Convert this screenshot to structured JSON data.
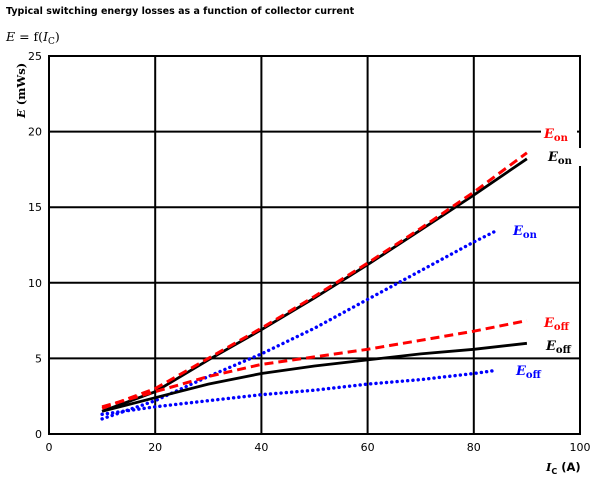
{
  "chart_data": {
    "type": "line",
    "title": "Typical switching energy losses as a function of collector current",
    "subtitle": {
      "italic_e": "E",
      "eq": " = f(",
      "italic_i": "I",
      "sub": "C",
      "close": ")"
    },
    "xlabel": {
      "main": "I",
      "sub": "C",
      "unit": " (A)"
    },
    "ylabel": {
      "main": "E",
      "unit": "  (mWs)"
    },
    "xlim": [
      0,
      100
    ],
    "ylim": [
      0,
      25
    ],
    "xticks": [
      "0",
      "20",
      "40",
      "60",
      "80",
      "100"
    ],
    "yticks": [
      "0",
      "5",
      "10",
      "15",
      "20",
      "25"
    ],
    "grid": true,
    "series": [
      {
        "label": "E",
        "sub": "on",
        "color": "#000000",
        "style": "solid",
        "x": [
          10,
          20,
          30,
          40,
          50,
          60,
          70,
          80,
          90
        ],
        "y": [
          1.5,
          2.8,
          4.9,
          6.9,
          9.0,
          11.2,
          13.5,
          15.8,
          18.2
        ]
      },
      {
        "label": "E",
        "sub": "on",
        "color": "#ff0000",
        "style": "dashed",
        "x": [
          10,
          20,
          30,
          40,
          50,
          60,
          70,
          80,
          90
        ],
        "y": [
          1.7,
          3.0,
          5.0,
          7.0,
          9.1,
          11.3,
          13.6,
          16.0,
          18.6
        ]
      },
      {
        "label": "E",
        "sub": "on",
        "color": "#0000ff",
        "style": "dotted",
        "x": [
          10,
          20,
          30,
          40,
          50,
          60,
          70,
          80,
          84
        ],
        "y": [
          1.0,
          2.2,
          3.8,
          5.3,
          7.0,
          8.9,
          10.8,
          12.7,
          13.4
        ]
      },
      {
        "label": "E",
        "sub": "off",
        "color": "#ff0000",
        "style": "dashed",
        "x": [
          10,
          20,
          30,
          40,
          50,
          60,
          70,
          80,
          90
        ],
        "y": [
          1.8,
          2.8,
          3.8,
          4.6,
          5.1,
          5.6,
          6.2,
          6.8,
          7.5
        ]
      },
      {
        "label": "E",
        "sub": "off",
        "color": "#000000",
        "style": "solid",
        "x": [
          10,
          20,
          30,
          40,
          50,
          60,
          70,
          80,
          90
        ],
        "y": [
          1.5,
          2.4,
          3.3,
          4.0,
          4.5,
          4.9,
          5.3,
          5.6,
          6.0
        ]
      },
      {
        "label": "E",
        "sub": "off",
        "color": "#0000ff",
        "style": "dotted",
        "x": [
          10,
          20,
          30,
          40,
          50,
          60,
          70,
          80,
          84
        ],
        "y": [
          1.3,
          1.8,
          2.2,
          2.6,
          2.9,
          3.3,
          3.6,
          4.0,
          4.2
        ]
      }
    ]
  }
}
